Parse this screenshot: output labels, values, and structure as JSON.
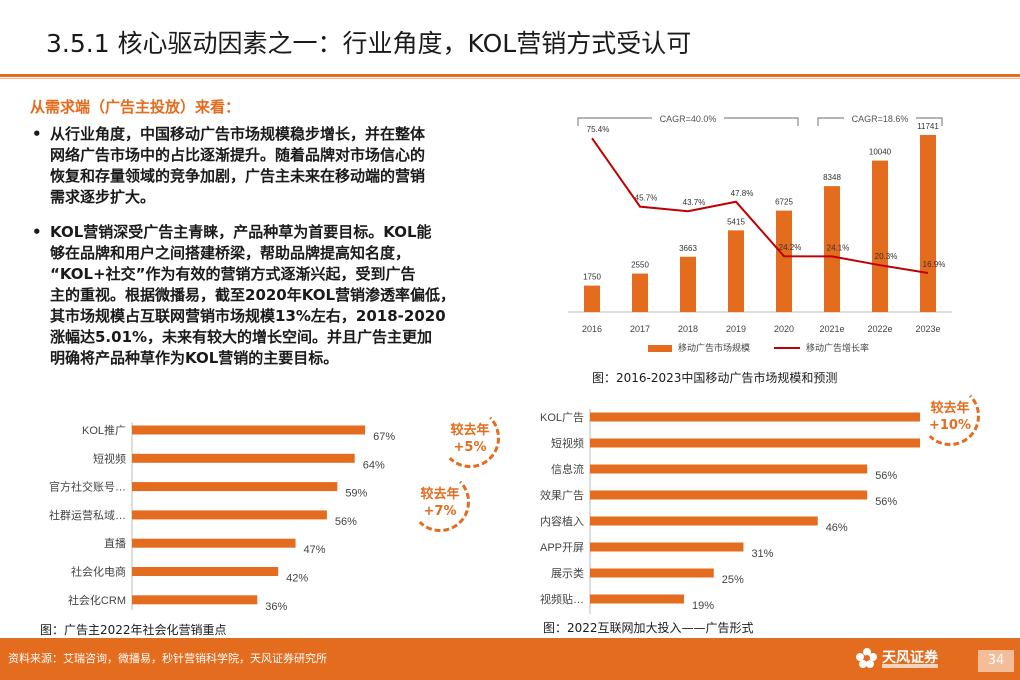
{
  "header": {
    "title": "3.5.1 核心驱动因素之一：行业角度，KOL营销方式受认可"
  },
  "section": {
    "subtitle": "从需求端（广告主投放）来看："
  },
  "bullets": [
    {
      "dot": "•",
      "text": "从行业角度，中国移动广告市场规模稳步增长，并在整体\n网络广告市场中的占比逐渐提升。随着品牌对市场信心的\n恢复和存量领域的竞争加剧，广告主未来在移动端的营销\n需求逐步扩大。"
    },
    {
      "dot": "•",
      "text": "KOL营销深受广告主青睐，产品种草为首要目标。KOL能\n够在品牌和用户之间搭建桥梁，帮助品牌提高知名度，\n“KOL+社交”作为有效的营销方式逐渐兴起，受到广告\n主的重视。根据微播易，截至2020年KOL营销渗透率偏低，\n其市场规模占互联网营销市场规模13%左右，2018-2020\n涨幅达5.01%，未来有较大的增长空间。并且广告主更加\n明确将产品种草作为KOL营销的主要目标。"
    }
  ],
  "badges": {
    "b1": "较去年\n+5%",
    "b2": "较去年\n+7%",
    "b3": "较去年\n+10%"
  },
  "captions": {
    "top": "图：2016-2023中国移动广告市场规模和预测",
    "left": "图：广告主2022年社会化营销重点",
    "right": "图：2022互联网加大投入——广告形式"
  },
  "footer": {
    "source": "资料来源：艾瑞咨询，微播易，秒针营销科学院，天风证券研究所",
    "logo": "天风证券",
    "page": "34"
  },
  "colors": {
    "accent": "#e46c1f",
    "line": "#c00000",
    "text": "#1a1a1a"
  },
  "chart_data": [
    {
      "id": "mobile-ad-market",
      "type": "bar",
      "categories": [
        "2016",
        "2017",
        "2018",
        "2019",
        "2020",
        "2021e",
        "2022e",
        "2023e"
      ],
      "series": [
        {
          "name": "移动广告市场规模",
          "type": "bar",
          "values": [
            1750,
            2550,
            3663,
            5415,
            6725,
            8348,
            10040,
            11741
          ],
          "labels": [
            "1750",
            "2550",
            "3663",
            "5415",
            "6725",
            "8348",
            "10040",
            "11741"
          ]
        },
        {
          "name": "移动广告增长率",
          "type": "line",
          "values": [
            75.4,
            45.7,
            43.7,
            47.8,
            24.2,
            24.1,
            20.3,
            16.9
          ],
          "labels": [
            "75.4%",
            "45.7%",
            "43.7%",
            "47.8%",
            "24.2%",
            "24.1%",
            "20.3%",
            "16.9%"
          ]
        }
      ],
      "annotations": [
        {
          "text": "CAGR=40.0%",
          "from": "2016",
          "to": "2020"
        },
        {
          "text": "CAGR=18.6%",
          "from": "2021e",
          "to": "2023e"
        }
      ],
      "ylim": [
        0,
        13000
      ],
      "ylim2": [
        0,
        85
      ],
      "legend": "bottom"
    },
    {
      "id": "social-marketing-focus",
      "type": "bar",
      "orientation": "horizontal",
      "categories": [
        "KOL推广",
        "短视频",
        "官方社交账号…",
        "社群运营私域…",
        "直播",
        "社会化电商",
        "社会化CRM"
      ],
      "values": [
        67,
        64,
        59,
        56,
        47,
        42,
        36
      ],
      "labels": [
        "67%",
        "64%",
        "59%",
        "56%",
        "47%",
        "42%",
        "36%"
      ],
      "xlim": [
        0,
        100
      ]
    },
    {
      "id": "ad-format-investment",
      "type": "bar",
      "orientation": "horizontal",
      "categories": [
        "KOL广告",
        "短视频",
        "信息流",
        "效果广告",
        "内容植入",
        "APP开屏",
        "展示类",
        "视频贴…"
      ],
      "values": [
        70,
        69,
        56,
        56,
        46,
        31,
        25,
        19
      ],
      "labels": [
        "70%",
        "69%",
        "56%",
        "56%",
        "46%",
        "31%",
        "25%",
        "19%"
      ],
      "xlim": [
        0,
        100
      ]
    }
  ]
}
